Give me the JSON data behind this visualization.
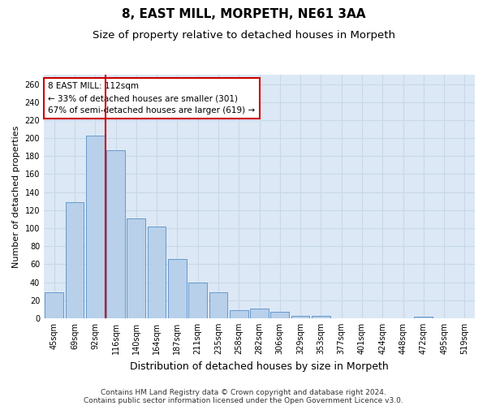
{
  "title": "8, EAST MILL, MORPETH, NE61 3AA",
  "subtitle": "Size of property relative to detached houses in Morpeth",
  "xlabel": "Distribution of detached houses by size in Morpeth",
  "ylabel": "Number of detached properties",
  "categories": [
    "45sqm",
    "69sqm",
    "92sqm",
    "116sqm",
    "140sqm",
    "164sqm",
    "187sqm",
    "211sqm",
    "235sqm",
    "258sqm",
    "282sqm",
    "306sqm",
    "329sqm",
    "353sqm",
    "377sqm",
    "401sqm",
    "424sqm",
    "448sqm",
    "472sqm",
    "495sqm",
    "519sqm"
  ],
  "values": [
    29,
    129,
    203,
    187,
    111,
    102,
    66,
    40,
    29,
    9,
    11,
    7,
    3,
    3,
    0,
    0,
    0,
    0,
    2,
    0,
    0
  ],
  "bar_color": "#b8d0ea",
  "bar_edge_color": "#6699cc",
  "vline_color": "#cc0000",
  "annotation_text": "8 EAST MILL: 112sqm\n← 33% of detached houses are smaller (301)\n67% of semi-detached houses are larger (619) →",
  "annotation_box_facecolor": "#ffffff",
  "annotation_box_edgecolor": "#cc0000",
  "ylim": [
    0,
    270
  ],
  "yticks": [
    0,
    20,
    40,
    60,
    80,
    100,
    120,
    140,
    160,
    180,
    200,
    220,
    240,
    260
  ],
  "grid_color": "#c8d8e8",
  "plot_bg_color": "#dce8f5",
  "fig_bg_color": "#ffffff",
  "footer_line1": "Contains HM Land Registry data © Crown copyright and database right 2024.",
  "footer_line2": "Contains public sector information licensed under the Open Government Licence v3.0.",
  "title_fontsize": 11,
  "subtitle_fontsize": 9.5,
  "xlabel_fontsize": 9,
  "ylabel_fontsize": 8,
  "tick_fontsize": 7,
  "annotation_fontsize": 7.5,
  "footer_fontsize": 6.5
}
